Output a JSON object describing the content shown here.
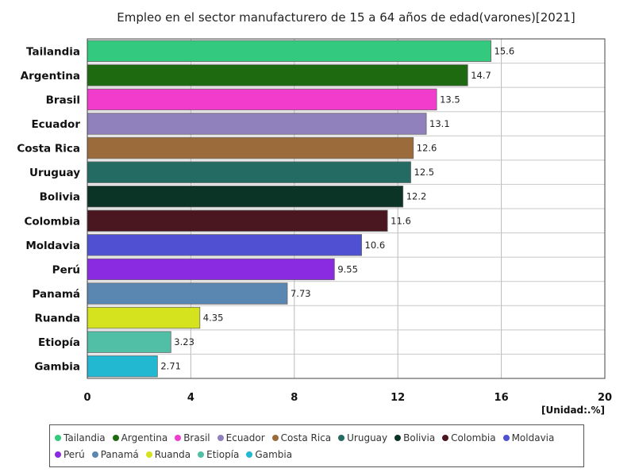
{
  "chart_data": {
    "type": "bar",
    "orientation": "horizontal",
    "title": "Empleo en el sector manufacturero de 15 a 64 años de edad(varones)[2021]",
    "unit": "[Unidad:.%]",
    "categories": [
      "Tailandia",
      "Argentina",
      "Brasil",
      "Ecuador",
      "Costa Rica",
      "Uruguay",
      "Bolivia",
      "Colombia",
      "Moldavia",
      "Perú",
      "Panamá",
      "Ruanda",
      "Etiopía",
      "Gambia"
    ],
    "values": [
      15.6,
      14.7,
      13.5,
      13.1,
      12.6,
      12.5,
      12.2,
      11.6,
      10.6,
      9.55,
      7.73,
      4.35,
      3.23,
      2.71
    ],
    "value_labels": [
      "15.6",
      "14.7",
      "13.5",
      "13.1",
      "12.6",
      "12.5",
      "12.2",
      "11.6",
      "10.6",
      "9.55",
      "7.73",
      "4.35",
      "3.23",
      "2.71"
    ],
    "colors": [
      "#33c97f",
      "#1e6a10",
      "#f23ccc",
      "#9080bb",
      "#9c6b3c",
      "#246b64",
      "#0b3326",
      "#4a1620",
      "#5050d2",
      "#8a2be2",
      "#5a87b2",
      "#d4e31e",
      "#50bfa6",
      "#23b8d2"
    ],
    "xlim": [
      0,
      20
    ],
    "xticks": [
      "0",
      "4",
      "8",
      "12",
      "16",
      "20"
    ],
    "grid": true,
    "legend_position": "bottom"
  }
}
